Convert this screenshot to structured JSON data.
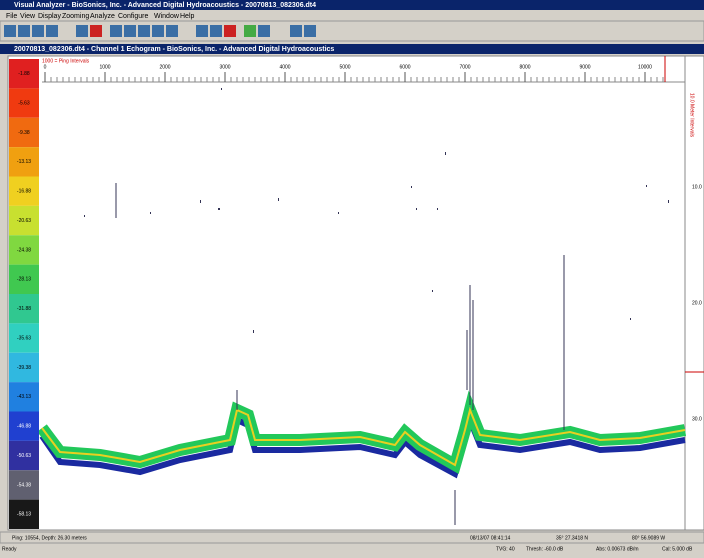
{
  "window": {
    "title": "Visual Analyzer - BioSonics, Inc. - Advanced Digital Hydroacoustics - 20070813_082306.dt4",
    "menu": [
      "File",
      "View",
      "Display",
      "Zooming",
      "Analyze",
      "Configure",
      "Window",
      "Help"
    ]
  },
  "child": {
    "title": "20070813_082306.dt4 - Channel 1 Echogram - BioSonics, Inc. - Advanced Digital Hydroacoustics",
    "x_axis": {
      "label": "1000 = Ping Intervals",
      "ticks": [
        0,
        1000,
        2000,
        3000,
        4000,
        5000,
        6000,
        7000,
        8000,
        9000,
        10000
      ]
    },
    "y_axis": {
      "label": "10.0 Meter Intervals",
      "ticks": [
        "10.0",
        "20.0",
        "30.0"
      ]
    },
    "color_scale": [
      "-1.88",
      "-5.63",
      "-9.38",
      "-13.13",
      "-16.88",
      "-20.63",
      "-24.38",
      "-28.13",
      "-31.88",
      "-35.63",
      "-39.38",
      "-43.13",
      "-46.88",
      "-50.63",
      "-54.38",
      "-58.13"
    ],
    "status": [
      "Ping: 10554, Depth: 26.30 meters",
      "08/13/07 08:41:14",
      "35° 27.3418 N",
      "80° 56.9089 W"
    ]
  },
  "statusbar": [
    "Ready",
    "TVG: 40",
    "Thresh: -60.0 dB",
    "Abs: 0.00673 dB/m",
    "Cal: 5.000 dB"
  ]
}
